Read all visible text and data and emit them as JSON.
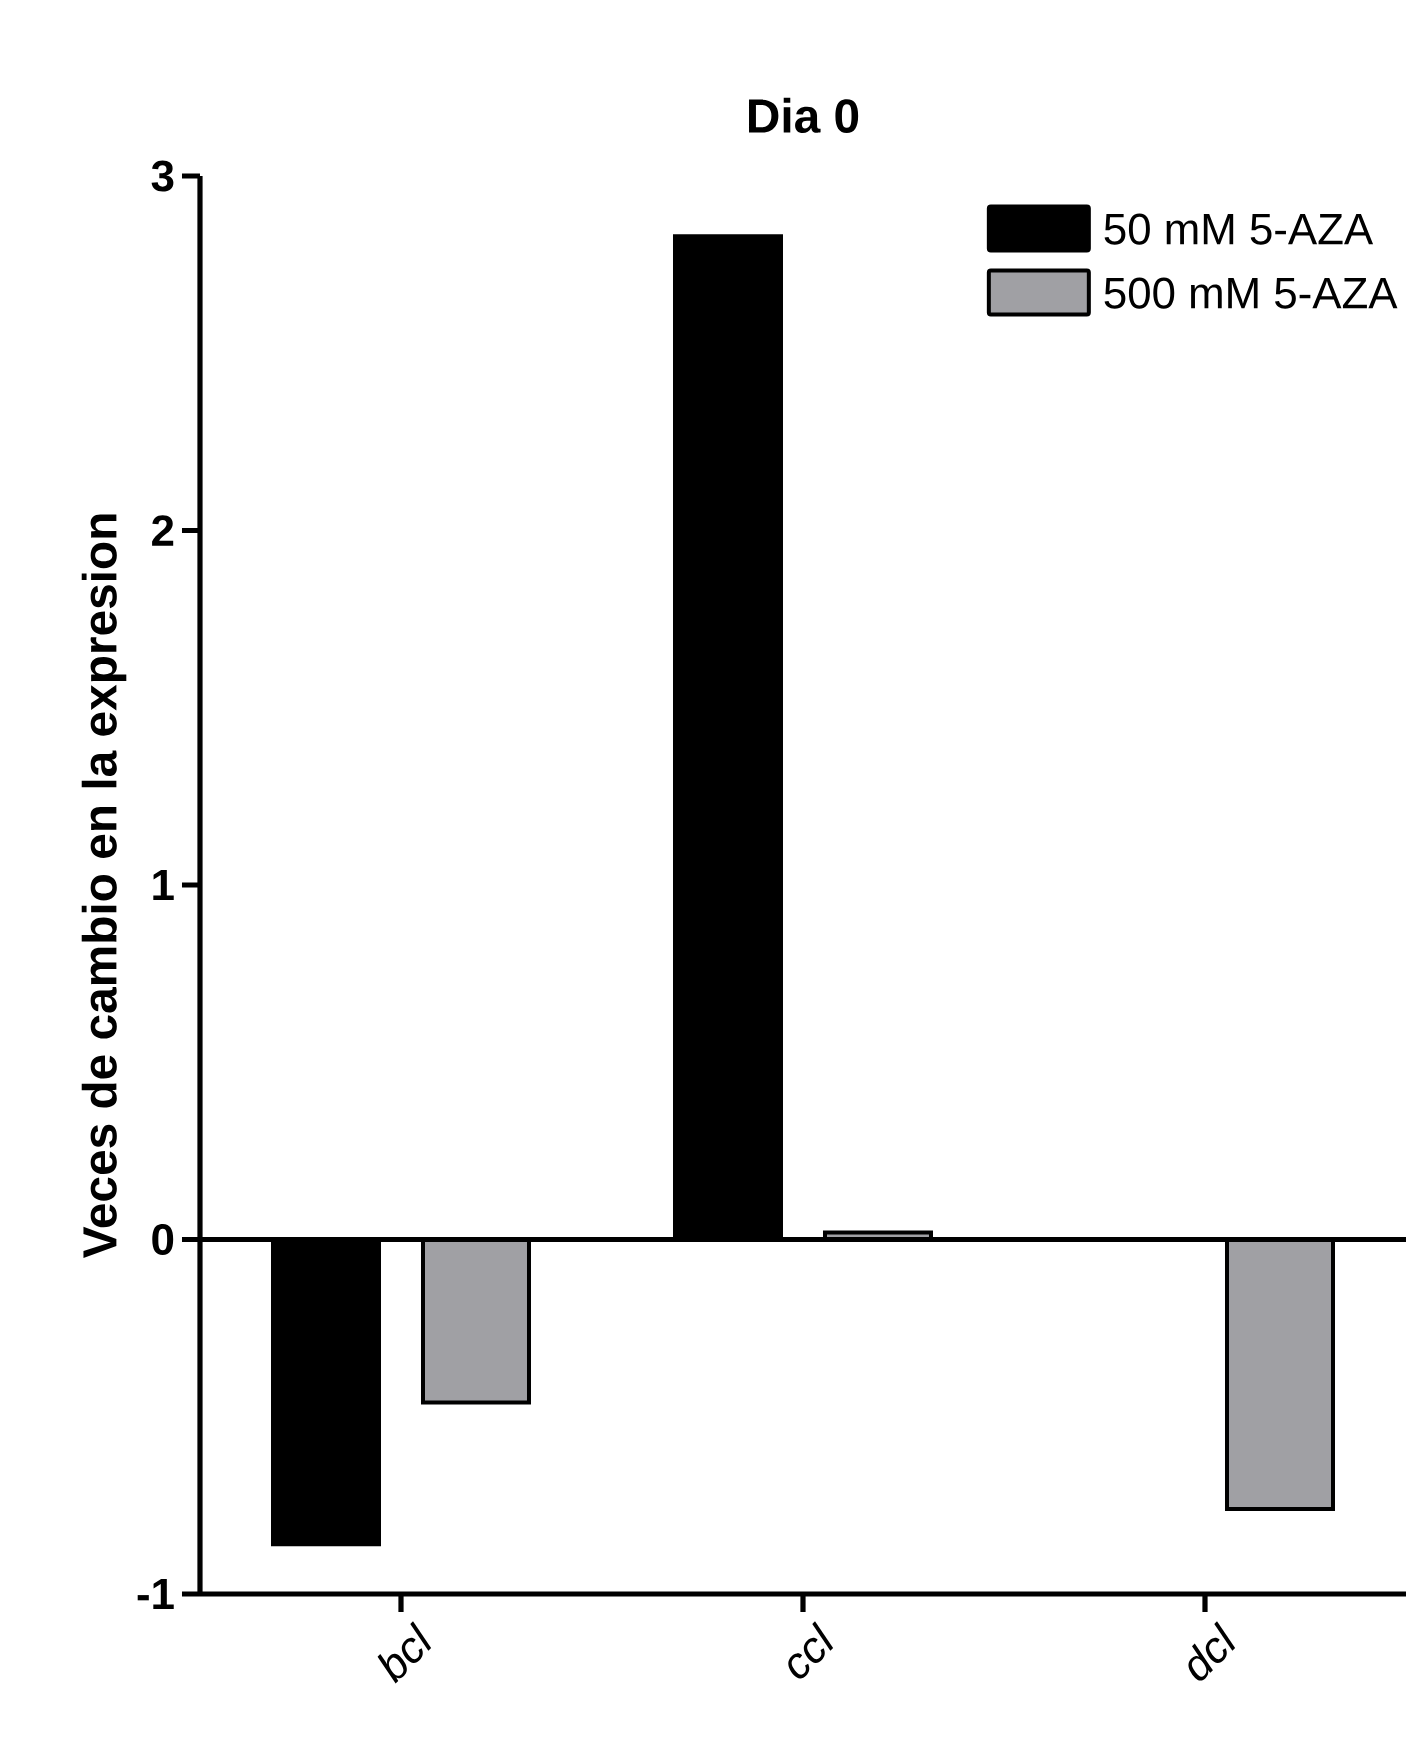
{
  "chart_data": {
    "type": "bar",
    "title": "Dia 0",
    "ylabel": "Veces de cambio en la expresion",
    "categories": [
      "bcl",
      "ccl",
      "dcl"
    ],
    "series": [
      {
        "name": "50 mM 5-AZA",
        "color": "#000000",
        "values": [
          -0.86,
          2.83,
          0
        ]
      },
      {
        "name": "500 mM 5-AZA",
        "color": "#a0a0a4",
        "values": [
          -0.46,
          0.02,
          -0.76
        ]
      }
    ],
    "ylim": [
      -1,
      3
    ],
    "yticks": [
      -1,
      0,
      1,
      2,
      3
    ],
    "legend": "top right",
    "ref_lines": [
      {
        "axis": "y",
        "value": 0
      }
    ]
  }
}
